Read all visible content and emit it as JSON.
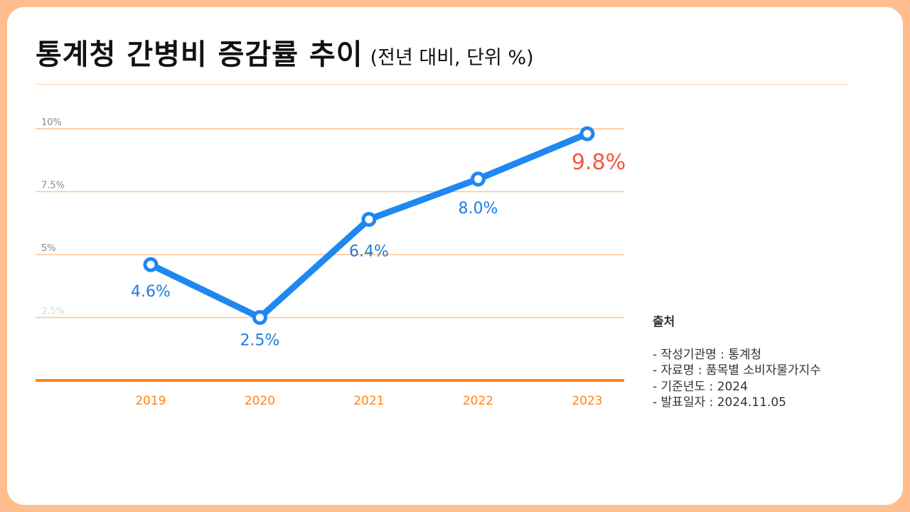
{
  "title": "통계청 간병비 증감률 추이",
  "subtitle": "(전년 대비, 단위 %)",
  "source": {
    "heading": "출처",
    "items": [
      "- 작성기관명 : 통계청",
      "- 자료명 : 품목별 소비자물가지수",
      "- 기준년도 : 2024",
      "- 발표일자 : 2024.11.05"
    ]
  },
  "colors": {
    "background": "#ffbe8f",
    "line": "#1e88f0",
    "label": "#1e7ee0",
    "highlight": "#f4583c",
    "grid": "#ffc48e",
    "axis": "#ff8513",
    "tick_x": "#ff8513",
    "tick_y": "#999999"
  },
  "chart_data": {
    "type": "line",
    "categories": [
      "2019",
      "2020",
      "2021",
      "2022",
      "2023"
    ],
    "values": [
      4.6,
      2.5,
      6.4,
      8.0,
      9.8
    ],
    "data_labels": [
      "4.6%",
      "2.5%",
      "6.4%",
      "8.0%",
      "9.8%"
    ],
    "y_ticks": [
      2.5,
      5,
      7.5,
      10
    ],
    "y_tick_labels": [
      "2.5%",
      "5%",
      "7.5%",
      "10%"
    ],
    "highlight_index": 4,
    "grid": true,
    "legend": "none"
  }
}
